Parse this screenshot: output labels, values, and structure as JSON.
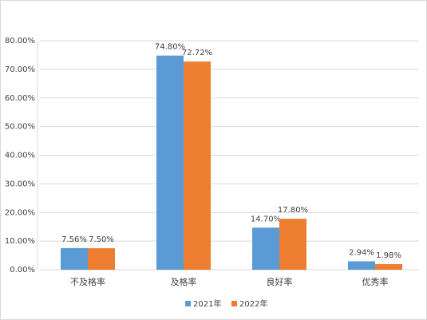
{
  "chart_data": {
    "type": "bar",
    "categories": [
      "不及格率",
      "及格率",
      "良好率",
      "优秀率"
    ],
    "series": [
      {
        "name": "2021年",
        "color": "#5b9bd5",
        "values": [
          7.56,
          74.8,
          14.7,
          2.94
        ],
        "value_labels": [
          "7.56%",
          "74.80%",
          "14.70%",
          "2.94%"
        ]
      },
      {
        "name": "2022年",
        "color": "#ed7d31",
        "values": [
          7.5,
          72.72,
          17.8,
          1.98
        ],
        "value_labels": [
          "7.50%",
          "72.72%",
          "17.80%",
          "1.98%"
        ]
      }
    ],
    "ylim": [
      0,
      80
    ],
    "yticks": [
      {
        "value": 0,
        "label": "0.00%"
      },
      {
        "value": 10,
        "label": "10.00%"
      },
      {
        "value": 20,
        "label": "20.00%"
      },
      {
        "value": 30,
        "label": "30.00%"
      },
      {
        "value": 40,
        "label": "40.00%"
      },
      {
        "value": 50,
        "label": "50.00%"
      },
      {
        "value": 60,
        "label": "60.00%"
      },
      {
        "value": 70,
        "label": "70.00%"
      },
      {
        "value": 80,
        "label": "80.00%"
      }
    ],
    "grid": true,
    "legend": "bottom"
  }
}
